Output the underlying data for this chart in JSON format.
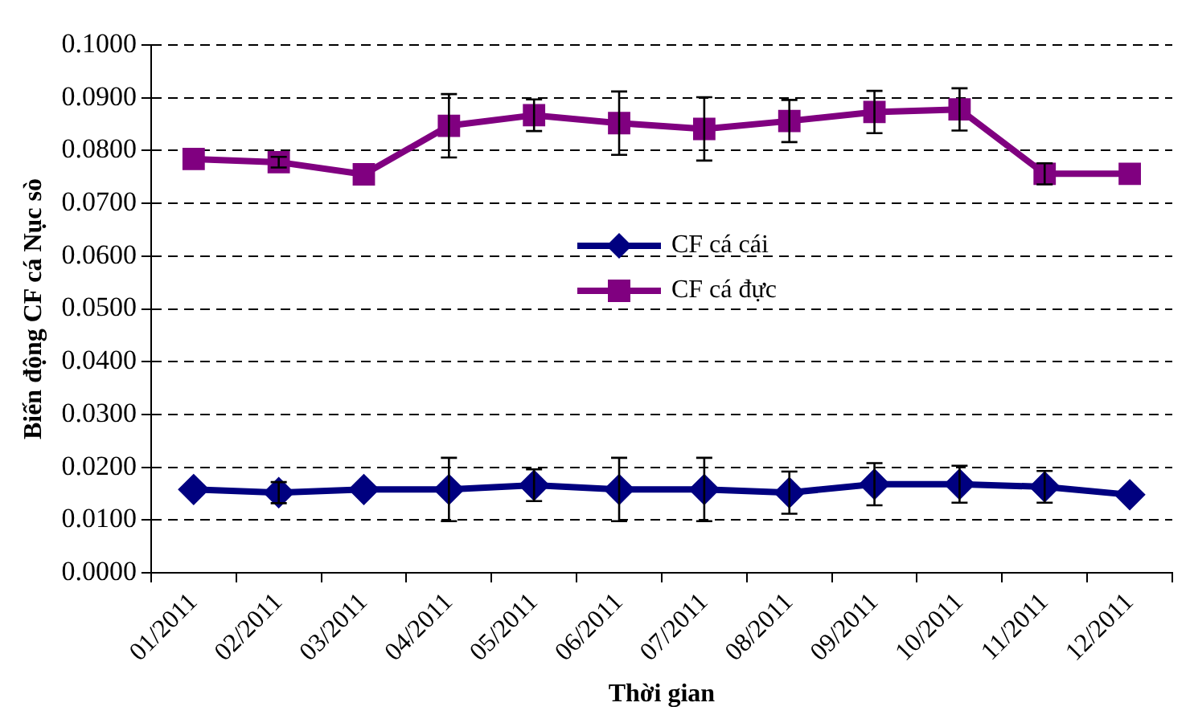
{
  "chart_data": {
    "type": "line",
    "xlabel": "Thời gian",
    "ylabel": "Biến động CF cá Nục sò",
    "categories": [
      "01/2011",
      "02/2011",
      "03/2011",
      "04/2011",
      "05/2011",
      "06/2011",
      "07/2011",
      "08/2011",
      "09/2011",
      "10/2011",
      "11/2011",
      "12/2011"
    ],
    "series": [
      {
        "name": "CF cá cái",
        "color": "#000080",
        "marker": "diamond",
        "values": [
          0.0158,
          0.0152,
          0.0158,
          0.0158,
          0.0166,
          0.0158,
          0.0158,
          0.0152,
          0.0168,
          0.0168,
          0.0163,
          0.0148
        ],
        "errors": [
          null,
          0.002,
          null,
          0.006,
          0.003,
          0.006,
          0.006,
          0.004,
          0.004,
          0.0035,
          0.003,
          null
        ]
      },
      {
        "name": "CF cá đực",
        "color": "#800080",
        "marker": "square",
        "values": [
          0.0784,
          0.0778,
          0.0755,
          0.0847,
          0.0867,
          0.0852,
          0.0841,
          0.0856,
          0.0873,
          0.0878,
          0.0756,
          0.0756
        ],
        "errors": [
          null,
          0.001,
          null,
          0.006,
          0.003,
          0.006,
          0.006,
          0.004,
          0.004,
          0.004,
          0.002,
          null
        ]
      }
    ],
    "ylim": [
      0,
      0.1
    ],
    "yticks": [
      {
        "value": 0,
        "label": "0.0000"
      },
      {
        "value": 0.01,
        "label": "0.0100"
      },
      {
        "value": 0.02,
        "label": "0.0200"
      },
      {
        "value": 0.03,
        "label": "0.0300"
      },
      {
        "value": 0.04,
        "label": "0.0400"
      },
      {
        "value": 0.05,
        "label": "0.0500"
      },
      {
        "value": 0.06,
        "label": "0.0600"
      },
      {
        "value": 0.07,
        "label": "0.0700"
      },
      {
        "value": 0.08,
        "label": "0.0800"
      },
      {
        "value": 0.09,
        "label": "0.0900"
      },
      {
        "value": 0.1,
        "label": "0.1000"
      }
    ],
    "grid": "y",
    "legend": "center",
    "line_style": "solid"
  }
}
